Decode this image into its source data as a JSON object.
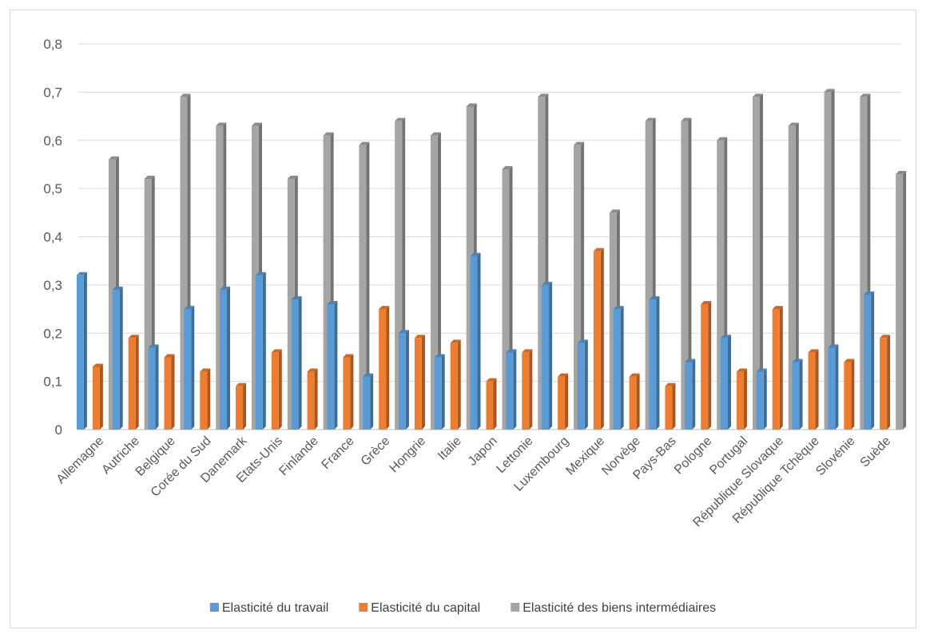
{
  "chart_data": {
    "type": "bar",
    "title": "",
    "xlabel": "",
    "ylabel": "",
    "ylim": [
      0,
      0.8
    ],
    "yticks": [
      "0",
      "0,1",
      "0,2",
      "0,3",
      "0,4",
      "0,5",
      "0,6",
      "0,7",
      "0,8"
    ],
    "grid": true,
    "legend_position": "bottom",
    "categories": [
      "Allemagne",
      "Autriche",
      "Belgique",
      "Corée du Sud",
      "Danemark",
      "Etats-Unis",
      "Finlande",
      "France",
      "Grèce",
      "Hongrie",
      "Italie",
      "Japon",
      "Lettonie",
      "Luxembourg",
      "Mexique",
      "Norvège",
      "Pays-Bas",
      "Pologne",
      "Portugal",
      "République Slovaque",
      "République Tchèque",
      "Slovénie",
      "Suède"
    ],
    "series": [
      {
        "name": "Elasticité du travail",
        "color": "#5b9bd5",
        "values": [
          0.32,
          0.29,
          0.17,
          0.25,
          0.29,
          0.32,
          0.27,
          0.26,
          0.11,
          0.2,
          0.15,
          0.36,
          0.16,
          0.3,
          0.18,
          0.25,
          0.27,
          0.14,
          0.19,
          0.12,
          0.14,
          0.17,
          0.28
        ]
      },
      {
        "name": "Elasticité du capital",
        "color": "#ed7d31",
        "values": [
          0.13,
          0.19,
          0.15,
          0.12,
          0.09,
          0.16,
          0.12,
          0.15,
          0.25,
          0.19,
          0.18,
          0.1,
          0.16,
          0.11,
          0.37,
          0.11,
          0.09,
          0.26,
          0.12,
          0.25,
          0.16,
          0.14,
          0.19
        ]
      },
      {
        "name": "Elasticité des biens intermédiaires",
        "color": "#a5a5a5",
        "values": [
          0.56,
          0.52,
          0.69,
          0.63,
          0.63,
          0.52,
          0.61,
          0.59,
          0.64,
          0.61,
          0.67,
          0.54,
          0.69,
          0.59,
          0.45,
          0.64,
          0.64,
          0.6,
          0.69,
          0.63,
          0.7,
          0.69,
          0.53
        ]
      }
    ]
  }
}
